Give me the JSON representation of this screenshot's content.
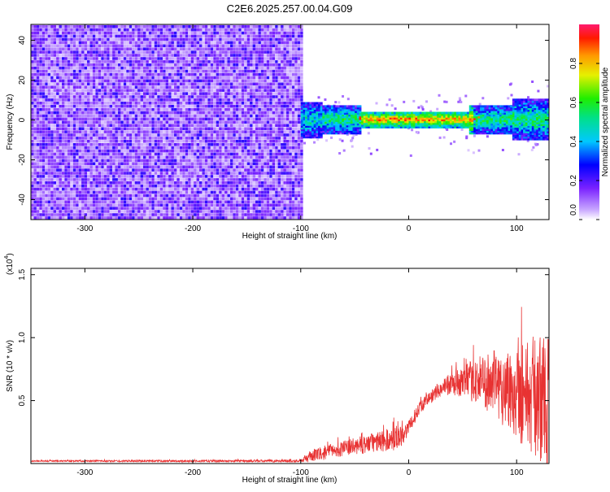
{
  "title": "C2E6.2025.257.00.04.G09",
  "chart_data": [
    {
      "type": "heatmap",
      "xlabel": "Height of straight line (km)",
      "ylabel": "Frequency (Hz)",
      "xlim": [
        -350,
        130
      ],
      "ylim": [
        -50,
        48
      ],
      "xticks": [
        -300,
        -200,
        -100,
        0,
        100
      ],
      "yticks": [
        -40,
        -20,
        0,
        20,
        40
      ],
      "colorbar": {
        "label": "Normalized spectral amplitude",
        "range": [
          0.0,
          1.0
        ],
        "ticks": [
          "0.0",
          "0.2",
          "0.4",
          "0.6",
          "0.8"
        ],
        "tick_values": [
          0.0,
          0.2,
          0.4,
          0.6,
          0.8
        ]
      },
      "regions": [
        {
          "x_range": [
            -350,
            -100
          ],
          "freq_range": [
            -50,
            48
          ],
          "amplitude": "0.0-0.2 (noise)"
        },
        {
          "x_range": [
            -100,
            130
          ],
          "freq_range": [
            -8,
            8
          ],
          "amplitude": "0.2-0.95 (signal)"
        }
      ]
    },
    {
      "type": "line",
      "xlabel": "Height of straight line (km)",
      "ylabel": "SNR (10 * v/v)",
      "y_multiplier": "(x10",
      "y_multiplier_exp": "4",
      "y_multiplier_close": ")",
      "xlim": [
        -350,
        130
      ],
      "ylim": [
        0,
        1.55
      ],
      "xticks": [
        -300,
        -200,
        -100,
        0,
        100
      ],
      "yticks": [
        "0.5",
        "1.0",
        "1.5"
      ],
      "ytick_values": [
        0.5,
        1.0,
        1.5
      ],
      "color": "#e83232",
      "envelope": {
        "x": [
          -350,
          -100,
          -90,
          -60,
          -30,
          -10,
          0,
          10,
          30,
          50,
          70,
          90,
          110,
          130
        ],
        "mean": [
          0.02,
          0.02,
          0.06,
          0.12,
          0.17,
          0.2,
          0.28,
          0.45,
          0.6,
          0.65,
          0.66,
          0.6,
          0.55,
          0.5
        ],
        "spread": [
          0.005,
          0.01,
          0.05,
          0.06,
          0.08,
          0.1,
          0.06,
          0.05,
          0.06,
          0.12,
          0.22,
          0.32,
          0.45,
          0.55
        ]
      }
    }
  ]
}
